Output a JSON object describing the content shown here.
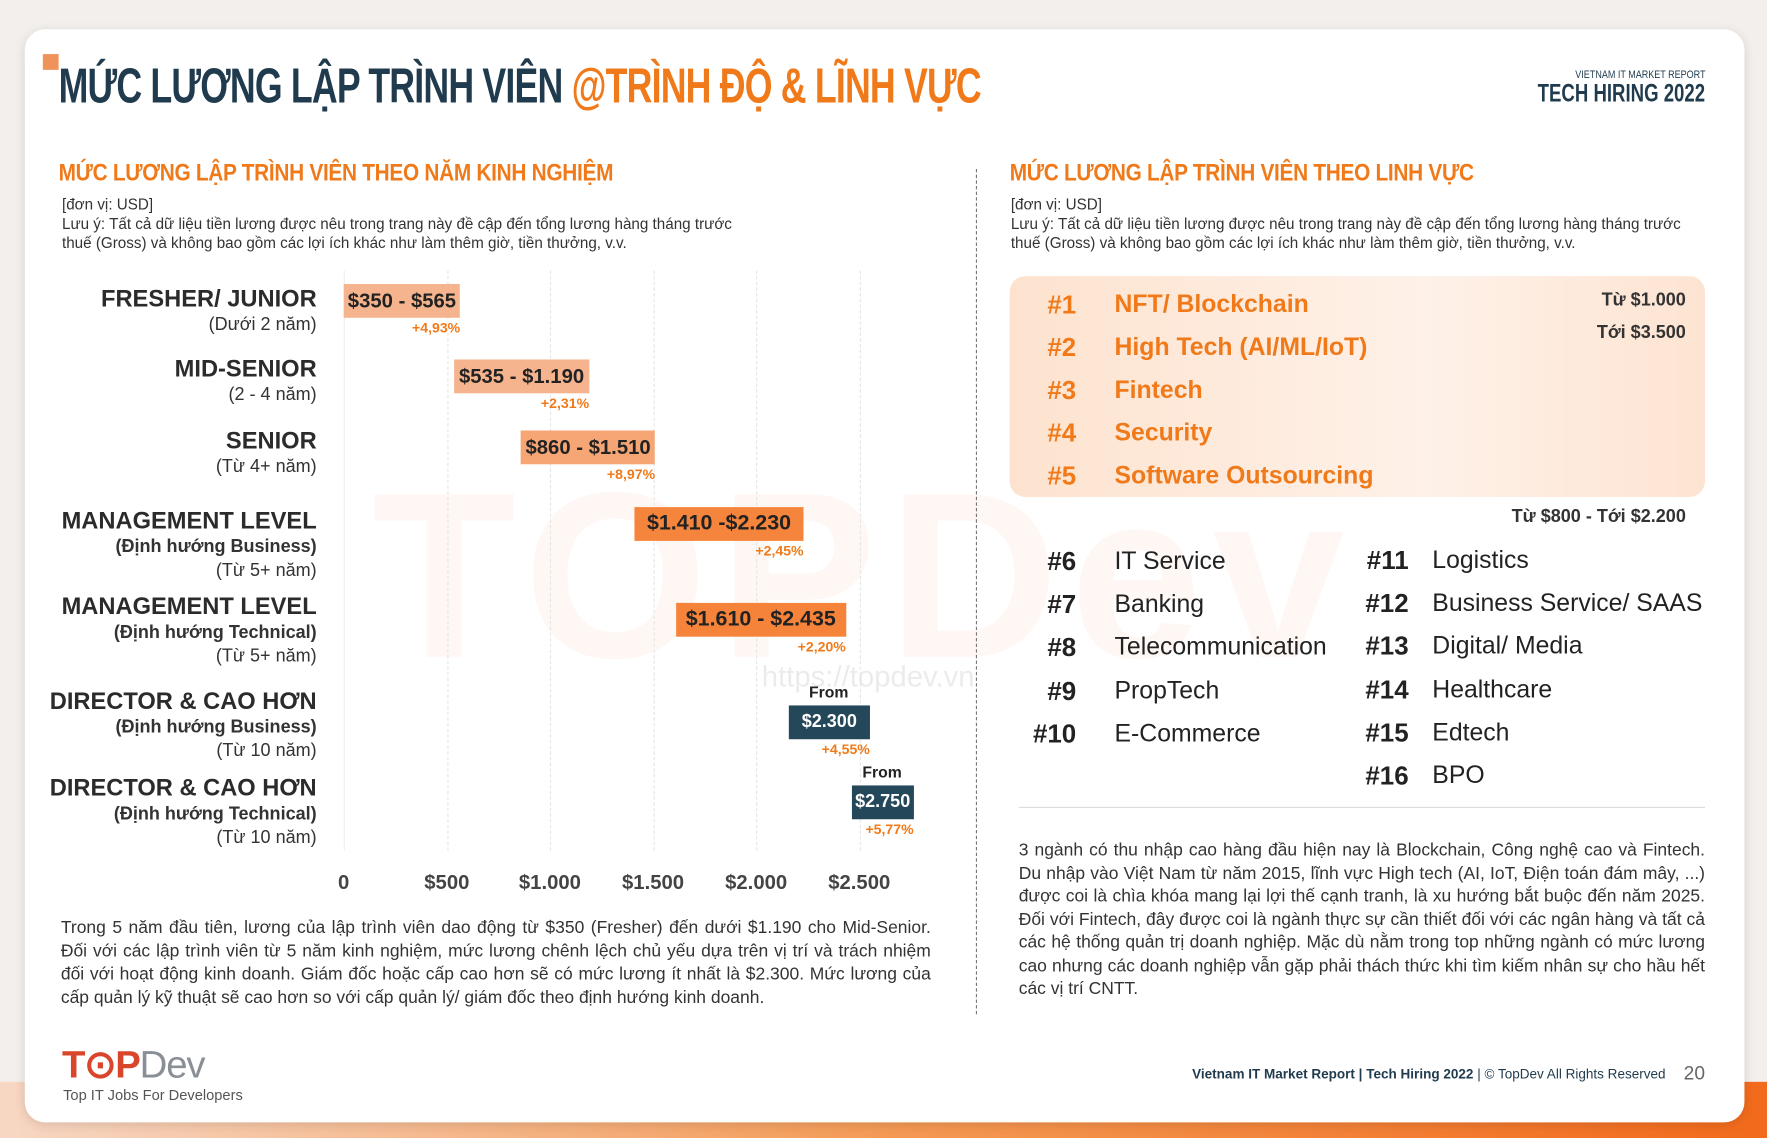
{
  "header": {
    "title_main": "MỨC LƯƠNG LẬP TRÌNH VIÊN ",
    "title_accent": "@TRÌNH ĐỘ & LĨNH VỰC",
    "brand_line1": "VIETNAM IT MARKET REPORT",
    "brand_line2": "TECH HIRING 2022"
  },
  "left": {
    "title": "MỨC LƯƠNG LẬP TRÌNH VIÊN THEO NĂM KINH NGHIỆM",
    "unit": "[đơn vị: USD]",
    "note": "Lưu ý: Tất cả dữ liệu tiền lương được nêu trong trang này đề cập đến tổng lương hàng tháng trước thuế (Gross) và không bao gồm các lợi ích khác như làm thêm giờ, tiền thưởng, v.v.",
    "paragraph": "Trong 5 năm đầu tiên, lương của lập trình viên dao động từ $350 (Fresher) đến dưới $1.190 cho Mid-Senior. Đối với các lập trình viên từ 5 năm kinh nghiệm, mức lương chênh lệch chủ yếu dựa trên vị trí và trách nhiệm đối với hoạt động kinh doanh. Giám đốc hoặc cấp cao hơn sẽ có mức lương ít nhất là $2.300. Mức lương của cấp quản lý kỹ thuật sẽ cao hơn so với cấp quản lý/ giám đốc theo định hướng kinh doanh."
  },
  "chart_data": {
    "type": "bar",
    "orientation": "horizontal-range",
    "xlim": [
      0,
      2900
    ],
    "ticks": [
      "0",
      "$500",
      "$1.000",
      "$1.500",
      "$2.000",
      "$2.500"
    ],
    "tick_values": [
      0,
      500,
      1000,
      1500,
      2000,
      2500
    ],
    "grid": true,
    "rows": [
      {
        "level": "FRESHER/ JUNIOR",
        "orientation": "",
        "years": "(Dưới 2 năm)",
        "min": 350,
        "max": 565,
        "label": "$350 - $565",
        "change": "+4,93%",
        "color": "#f5b48e"
      },
      {
        "level": "MID-SENIOR",
        "orientation": "",
        "years": "(2 - 4 năm)",
        "min": 535,
        "max": 1190,
        "label": "$535 - $1.190",
        "change": "+2,31%",
        "color": "#f5b48e"
      },
      {
        "level": "SENIOR",
        "orientation": "",
        "years": "(Từ 4+ năm)",
        "min": 860,
        "max": 1510,
        "label": "$860 - $1.510",
        "change": "+8,97%",
        "color": "#f6a675"
      },
      {
        "level": "MANAGEMENT LEVEL",
        "orientation": "(Định hướng Business)",
        "years": "(Từ 5+ năm)",
        "min": 1410,
        "max": 2230,
        "label": "$1.410 -$2.230",
        "change": "+2,45%",
        "color": "#f5853c"
      },
      {
        "level": "MANAGEMENT LEVEL",
        "orientation": "(Định hướng Technical)",
        "years": "(Từ 5+ năm)",
        "min": 1610,
        "max": 2435,
        "label": "$1.610 - $2.435",
        "change": "+2,20%",
        "color": "#f5843a"
      },
      {
        "level": "DIRECTOR & CAO HƠN",
        "orientation": "(Định hướng Business)",
        "years": "(Từ 10 năm)",
        "min": 2300,
        "max": null,
        "from": "From",
        "label": "$2.300",
        "change": "+4,55%",
        "color": "#24485a"
      },
      {
        "level": "DIRECTOR & CAO HƠN",
        "orientation": "(Định hướng Technical)",
        "years": "(Từ 10 năm)",
        "min": 2750,
        "max": null,
        "from": "From",
        "label": "$2.750",
        "change": "+5,77%",
        "color": "#24485a"
      }
    ]
  },
  "right": {
    "title": "MỨC LƯƠNG LẬP TRÌNH VIÊN THEO LINH VỰC",
    "unit": "[đơn vị: USD]",
    "note": "Lưu ý: Tất cả dữ liệu tiền lương được nêu trong trang này đề cập đến tổng lương hàng tháng trước thuế (Gross) và không bao gồm các lợi ích khác như làm thêm giờ, tiền thưởng, v.v.",
    "top_range_from": "Từ $1.000",
    "top_range_to": "Tới $3.500",
    "top": [
      {
        "rank": "#1",
        "name": "NFT/ Blockchain"
      },
      {
        "rank": "#2",
        "name": "High Tech (AI/ML/IoT)"
      },
      {
        "rank": "#3",
        "name": "Fintech"
      },
      {
        "rank": "#4",
        "name": "Security"
      },
      {
        "rank": "#5",
        "name": "Software Outsourcing"
      }
    ],
    "other_range": "Từ $800 - Tới $2.200",
    "col1": [
      {
        "rank": "#6",
        "name": "IT Service"
      },
      {
        "rank": "#7",
        "name": "Banking"
      },
      {
        "rank": "#8",
        "name": "Telecommunication"
      },
      {
        "rank": "#9",
        "name": "PropTech"
      },
      {
        "rank": "#10",
        "name": "E-Commerce"
      }
    ],
    "col2": [
      {
        "rank": "#11",
        "name": "Logistics"
      },
      {
        "rank": "#12",
        "name": "Business Service/ SAAS"
      },
      {
        "rank": "#13",
        "name": "Digital/ Media"
      },
      {
        "rank": "#14",
        "name": "Healthcare"
      },
      {
        "rank": "#15",
        "name": "Edtech"
      },
      {
        "rank": "#16",
        "name": "BPO"
      }
    ],
    "paragraph": "3 ngành có thu nhập cao hàng đầu hiện nay là Blockchain, Công nghệ cao và Fintech. Du nhập vào Việt Nam từ năm 2015, lĩnh vực High tech (AI, IoT, Điện toán đám mây, ...) được coi là chìa khóa mang lại lợi thế cạnh tranh, là xu hướng bắt buộc đến năm 2025. Đối với Fintech, đây được coi là ngành thực sự cần thiết đối với các ngân hàng và tất cả các hệ thống quản trị doanh nghiệp. Mặc dù nằm trong top những ngành có mức lương cao nhưng các doanh nghiệp vẫn gặp phải thách thức khi tìm kiếm nhân sự cho hầu hết các vị trí CNTT."
  },
  "watermark": {
    "text": "TOPDev",
    "url": "https://topdev.vn"
  },
  "footer": {
    "logo": "TOPDev",
    "tagline": "Top IT Jobs For Developers",
    "report": "Vietnam IT Market Report | Tech Hiring 2022",
    "rights": " | © TopDev All Rights Reserved",
    "page": "20"
  }
}
